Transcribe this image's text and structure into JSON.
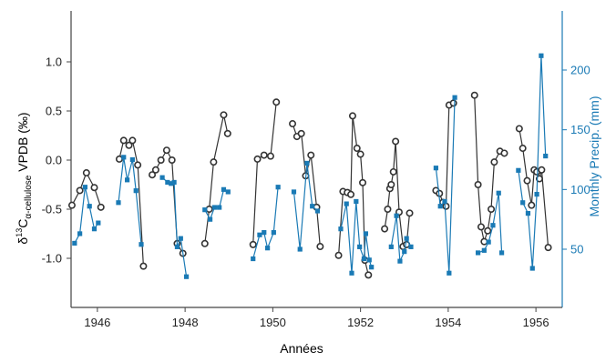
{
  "chart_data": {
    "type": "line",
    "title": "",
    "xlabel": "Années",
    "ylabel_left_main": "δ",
    "ylabel_left_sup": "13",
    "ylabel_left_rest": "C",
    "ylabel_left_sub": "α-cellulose",
    "ylabel_left_tail": " VPDB (‰)",
    "ylabel_right": "Monthly Precip. (mm)",
    "xlim": [
      1945.4,
      1956.6
    ],
    "ylim_left": [
      -1.4,
      1.5
    ],
    "ylim_right": [
      0,
      240
    ],
    "x_ticks": [
      1946,
      1948,
      1950,
      1952,
      1954,
      1956
    ],
    "x_tick_labels": [
      "1946",
      "1948",
      "1950",
      "1952",
      "1954",
      "1956"
    ],
    "y_left_ticks": [
      1.0,
      0.5,
      0.0,
      -0.5,
      -1.0
    ],
    "y_left_tick_labels": [
      "1.0",
      "0.5",
      "0.0",
      "-0.5",
      "-1.0"
    ],
    "y_right_ticks": [
      200,
      150,
      100,
      50
    ],
    "y_right_tick_labels": [
      "200",
      "150",
      "100",
      "50"
    ],
    "colors": {
      "isotope": "#333333",
      "precip": "#1a7ab5",
      "axis": "#444444",
      "right_axis": "#1a7ab5"
    },
    "grid": false,
    "series": [
      {
        "axis": "left",
        "marker": "circle",
        "segments": [
          [
            [
              1945.42,
              -0.46
            ],
            [
              1945.6,
              -0.31
            ],
            [
              1945.75,
              -0.13
            ],
            [
              1945.93,
              -0.28
            ],
            [
              1946.08,
              -0.48
            ]
          ],
          [
            [
              1946.5,
              0.01
            ],
            [
              1946.6,
              0.2
            ],
            [
              1946.72,
              0.15
            ],
            [
              1946.8,
              0.2
            ],
            [
              1946.92,
              -0.05
            ],
            [
              1947.05,
              -1.08
            ]
          ],
          [
            [
              1947.25,
              -0.15
            ],
            [
              1947.33,
              -0.1
            ],
            [
              1947.45,
              0.0
            ],
            [
              1947.58,
              0.1
            ],
            [
              1947.7,
              0.0
            ],
            [
              1947.82,
              -0.85
            ],
            [
              1947.95,
              -0.95
            ]
          ],
          [
            [
              1948.45,
              -0.85
            ],
            [
              1948.55,
              -0.5
            ],
            [
              1948.65,
              -0.02
            ],
            [
              1948.88,
              0.46
            ],
            [
              1948.97,
              0.27
            ]
          ],
          [
            [
              1949.55,
              -0.86
            ],
            [
              1949.65,
              0.01
            ],
            [
              1949.8,
              0.05
            ],
            [
              1949.95,
              0.04
            ],
            [
              1950.08,
              0.59
            ]
          ],
          [
            [
              1950.45,
              0.37
            ],
            [
              1950.55,
              0.24
            ],
            [
              1950.65,
              0.27
            ],
            [
              1950.75,
              -0.16
            ],
            [
              1950.87,
              0.05
            ],
            [
              1951.0,
              -0.48
            ],
            [
              1951.08,
              -0.88
            ]
          ],
          [
            [
              1951.5,
              -0.97
            ],
            [
              1951.6,
              -0.32
            ],
            [
              1951.7,
              -0.33
            ],
            [
              1951.78,
              -0.35
            ],
            [
              1951.82,
              0.45
            ],
            [
              1951.92,
              0.12
            ],
            [
              1952.0,
              0.06
            ],
            [
              1952.05,
              -0.23
            ],
            [
              1952.1,
              -1.02
            ],
            [
              1952.18,
              -1.17
            ]
          ],
          [
            [
              1952.55,
              -0.7
            ],
            [
              1952.62,
              -0.5
            ],
            [
              1952.67,
              -0.29
            ],
            [
              1952.7,
              -0.25
            ],
            [
              1952.75,
              -0.12
            ],
            [
              1952.8,
              0.19
            ],
            [
              1952.88,
              -0.53
            ],
            [
              1952.97,
              -0.88
            ],
            [
              1953.05,
              -0.86
            ],
            [
              1953.12,
              -0.54
            ]
          ],
          [
            [
              1953.72,
              -0.31
            ],
            [
              1953.8,
              -0.34
            ],
            [
              1953.88,
              -0.43
            ],
            [
              1953.95,
              -0.47
            ],
            [
              1954.02,
              0.56
            ],
            [
              1954.12,
              0.58
            ]
          ],
          [
            [
              1954.6,
              0.66
            ],
            [
              1954.68,
              -0.25
            ],
            [
              1954.75,
              -0.68
            ],
            [
              1954.82,
              -0.83
            ],
            [
              1954.9,
              -0.72
            ],
            [
              1954.98,
              -0.5
            ],
            [
              1955.05,
              -0.02
            ],
            [
              1955.18,
              0.09
            ],
            [
              1955.28,
              0.07
            ]
          ],
          [
            [
              1955.62,
              0.32
            ],
            [
              1955.7,
              0.12
            ],
            [
              1955.8,
              -0.21
            ],
            [
              1955.9,
              -0.46
            ],
            [
              1955.96,
              -0.1
            ],
            [
              1956.02,
              -0.12
            ],
            [
              1956.08,
              -0.19
            ],
            [
              1956.13,
              -0.1
            ],
            [
              1956.28,
              -0.89
            ]
          ]
        ]
      },
      {
        "axis": "right",
        "marker": "square",
        "segments": [
          [
            [
              1945.48,
              55
            ],
            [
              1945.6,
              63
            ],
            [
              1945.72,
              102
            ],
            [
              1945.82,
              86
            ],
            [
              1945.93,
              67
            ],
            [
              1946.02,
              72
            ]
          ],
          [
            [
              1946.48,
              89
            ],
            [
              1946.6,
              127
            ],
            [
              1946.68,
              108
            ],
            [
              1946.8,
              125
            ],
            [
              1946.88,
              99
            ],
            [
              1947.0,
              54
            ]
          ],
          [
            [
              1947.48,
              110
            ],
            [
              1947.6,
              106
            ],
            [
              1947.68,
              105
            ],
            [
              1947.75,
              106
            ],
            [
              1947.82,
              52
            ],
            [
              1947.9,
              59
            ],
            [
              1948.03,
              27
            ]
          ],
          [
            [
              1948.45,
              83
            ],
            [
              1948.57,
              75
            ],
            [
              1948.67,
              85
            ],
            [
              1948.78,
              85
            ],
            [
              1948.88,
              100
            ],
            [
              1948.98,
              98
            ]
          ],
          [
            [
              1949.55,
              42
            ],
            [
              1949.7,
              62
            ],
            [
              1949.8,
              64
            ],
            [
              1949.88,
              51
            ],
            [
              1950.02,
              64
            ],
            [
              1950.12,
              102
            ]
          ],
          [
            [
              1950.48,
              98
            ],
            [
              1950.62,
              50
            ],
            [
              1950.78,
              122
            ],
            [
              1950.9,
              86
            ],
            [
              1951.02,
              82
            ]
          ],
          [
            [
              1951.55,
              67
            ],
            [
              1951.68,
              88
            ],
            [
              1951.8,
              30
            ],
            [
              1951.9,
              90
            ],
            [
              1951.98,
              52
            ],
            [
              1952.08,
              42
            ],
            [
              1952.12,
              63
            ],
            [
              1952.2,
              41
            ],
            [
              1952.25,
              35
            ]
          ],
          [
            [
              1952.7,
              52
            ],
            [
              1952.82,
              78
            ],
            [
              1952.9,
              40
            ],
            [
              1953.0,
              48
            ],
            [
              1953.05,
              59
            ],
            [
              1953.15,
              52
            ]
          ],
          [
            [
              1953.72,
              118
            ],
            [
              1953.82,
              86
            ],
            [
              1953.92,
              90
            ],
            [
              1954.02,
              30
            ],
            [
              1954.15,
              177
            ]
          ],
          [
            [
              1954.68,
              47
            ],
            [
              1954.82,
              49
            ],
            [
              1954.92,
              56
            ],
            [
              1955.02,
              70
            ],
            [
              1955.15,
              97
            ],
            [
              1955.22,
              47
            ]
          ],
          [
            [
              1955.6,
              116
            ],
            [
              1955.7,
              89
            ],
            [
              1955.82,
              80
            ],
            [
              1955.92,
              34
            ],
            [
              1956.02,
              96
            ],
            [
              1956.12,
              212
            ],
            [
              1956.22,
              128
            ]
          ]
        ]
      }
    ]
  }
}
